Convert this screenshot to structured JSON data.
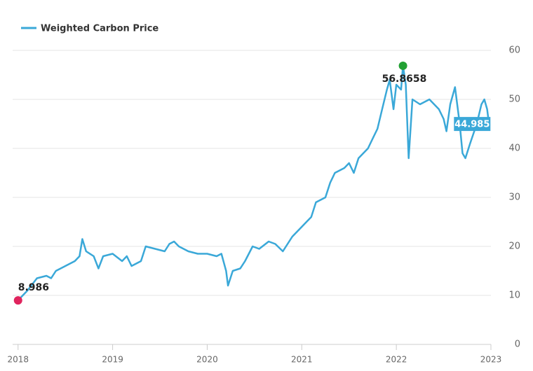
{
  "chart_data": {
    "type": "line",
    "series": [
      {
        "name": "Weighted Carbon Price",
        "color": "#3aa8d8",
        "x": [
          2018.0,
          2018.05,
          2018.1,
          2018.2,
          2018.3,
          2018.35,
          2018.4,
          2018.5,
          2018.6,
          2018.65,
          2018.68,
          2018.72,
          2018.8,
          2018.85,
          2018.9,
          2019.0,
          2019.1,
          2019.15,
          2019.2,
          2019.3,
          2019.35,
          2019.45,
          2019.55,
          2019.6,
          2019.65,
          2019.7,
          2019.8,
          2019.9,
          2020.0,
          2020.1,
          2020.15,
          2020.2,
          2020.22,
          2020.27,
          2020.35,
          2020.4,
          2020.48,
          2020.55,
          2020.65,
          2020.72,
          2020.8,
          2020.9,
          2021.0,
          2021.05,
          2021.1,
          2021.15,
          2021.25,
          2021.3,
          2021.35,
          2021.45,
          2021.5,
          2021.55,
          2021.6,
          2021.7,
          2021.75,
          2021.8,
          2021.85,
          2021.9,
          2021.93,
          2021.97,
          2022.0,
          2022.05,
          2022.07,
          2022.1,
          2022.13,
          2022.17,
          2022.25,
          2022.35,
          2022.45,
          2022.5,
          2022.53,
          2022.57,
          2022.62,
          2022.67,
          2022.7,
          2022.73,
          2022.78,
          2022.85,
          2022.9,
          2022.93,
          2022.96,
          2022.98
        ],
        "values": [
          8.986,
          10,
          11,
          13.5,
          14,
          13.5,
          15,
          16,
          17,
          18,
          21.5,
          19,
          18,
          15.5,
          18,
          18.5,
          17,
          18,
          16,
          17,
          20,
          19.5,
          19,
          20.5,
          21,
          20,
          19,
          18.5,
          18.5,
          18,
          18.5,
          15,
          12,
          15,
          15.5,
          17,
          20,
          19.5,
          21,
          20.5,
          19,
          22,
          24,
          25,
          26,
          29,
          30,
          33,
          35,
          36,
          37,
          35,
          38,
          40,
          42,
          44,
          48,
          52,
          54,
          48,
          53,
          52,
          56.8658,
          53,
          38,
          50,
          49,
          50,
          48,
          46,
          43.5,
          49,
          52.5,
          45,
          39,
          38,
          41,
          45,
          49,
          50,
          48,
          44.985
        ]
      }
    ],
    "highlights": [
      {
        "index": 0,
        "color": "#e0245e"
      },
      {
        "index": 62,
        "color": "#22a033"
      },
      {
        "index": 81,
        "color": "#3aa8d8"
      }
    ],
    "xlim": [
      2017.95,
      2023.0
    ],
    "xticks": [
      2018,
      2019,
      2020,
      2021,
      2022,
      2023
    ],
    "ylim": [
      0,
      60
    ],
    "yticks": [
      0,
      10,
      20,
      30,
      40,
      50,
      60
    ],
    "grid": true
  }
}
